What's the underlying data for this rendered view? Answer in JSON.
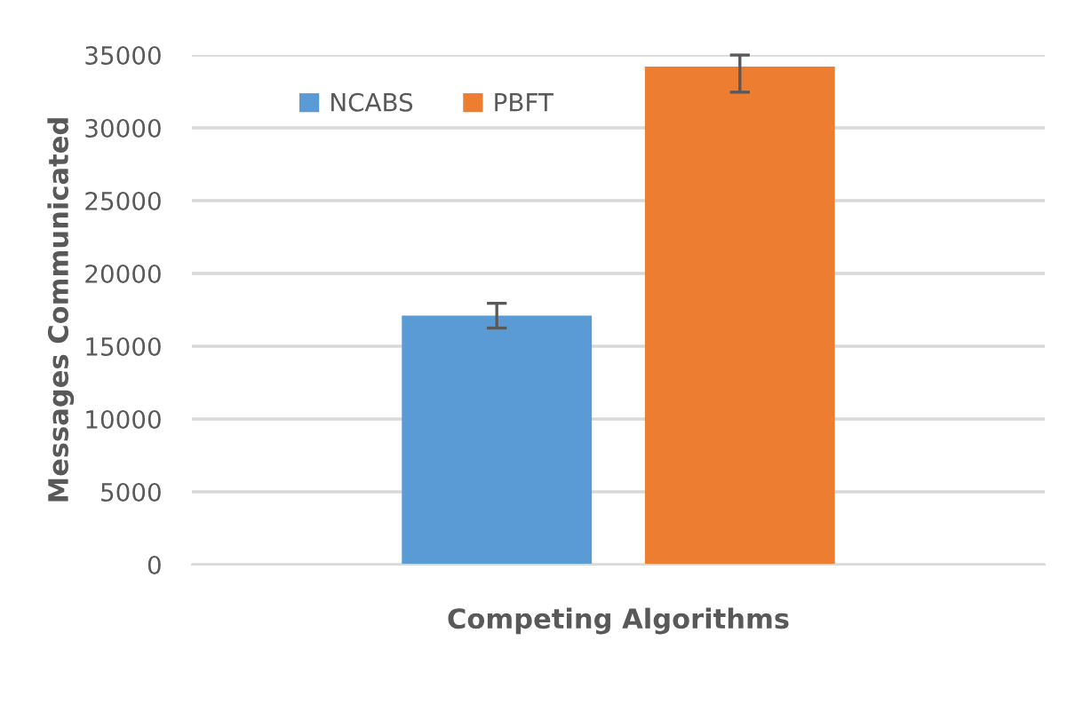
{
  "chart_data": {
    "type": "bar",
    "xlabel": "Competing Algorithms",
    "ylabel": "Messages Communicated",
    "categories": [
      null
    ],
    "series": [
      {
        "name": "NCABS",
        "color": "#5b9bd5",
        "values": [
          17100
        ],
        "errors": [
          [
            16250,
            17950
          ]
        ]
      },
      {
        "name": "PBFT",
        "color": "#ed7d31",
        "values": [
          34200
        ],
        "errors": [
          [
            32450,
            35000
          ]
        ]
      }
    ],
    "ylim": [
      0,
      35000
    ],
    "yticks": [
      0,
      5000,
      10000,
      15000,
      20000,
      25000,
      30000,
      35000
    ],
    "grid": "y",
    "legend": "top left"
  }
}
